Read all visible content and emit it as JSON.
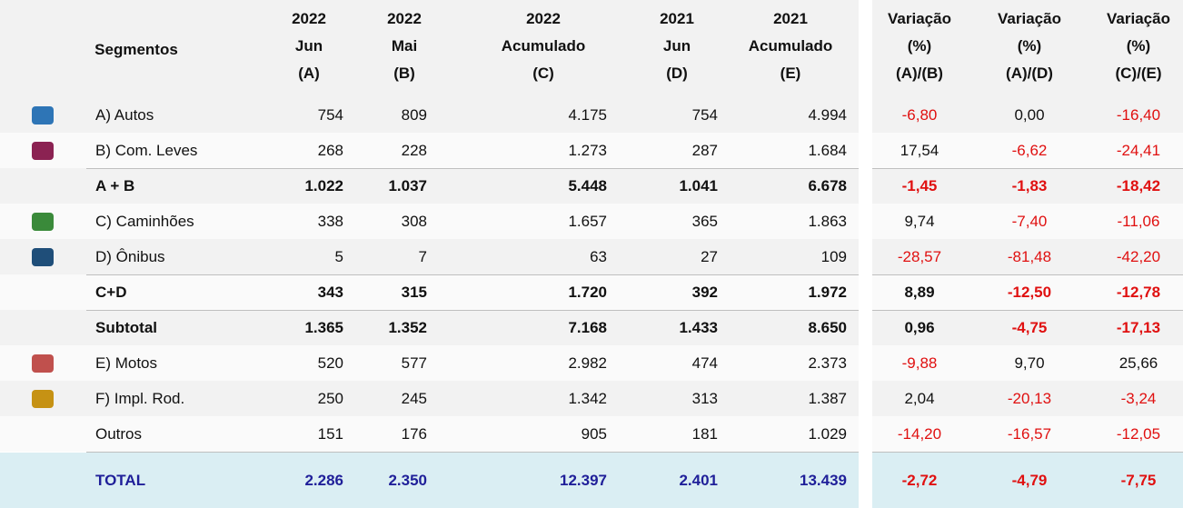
{
  "header": {
    "segment": "Segmentos",
    "columns": [
      [
        "2022",
        "Jun",
        "(A)"
      ],
      [
        "2022",
        "Mai",
        "(B)"
      ],
      [
        "2022",
        "Acumulado",
        "(C)"
      ],
      [
        "2021",
        "Jun",
        "(D)"
      ],
      [
        "2021",
        "Acumulado",
        "(E)"
      ]
    ],
    "variations": [
      [
        "Variação",
        "(%)",
        "(A)/(B)"
      ],
      [
        "Variação",
        "(%)",
        "(A)/(D)"
      ],
      [
        "Variação",
        "(%)",
        "(C)/(E)"
      ]
    ]
  },
  "rows": [
    {
      "label": "A) Autos",
      "values": [
        "754",
        "809",
        "4.175",
        "754",
        "4.994"
      ],
      "variations": [
        "-6,80",
        "0,00",
        "-16,40"
      ]
    },
    {
      "label": "B) Com. Leves",
      "values": [
        "268",
        "228",
        "1.273",
        "287",
        "1.684"
      ],
      "variations": [
        "17,54",
        "-6,62",
        "-24,41"
      ]
    },
    {
      "label": "A + B",
      "values": [
        "1.022",
        "1.037",
        "5.448",
        "1.041",
        "6.678"
      ],
      "variations": [
        "-1,45",
        "-1,83",
        "-18,42"
      ],
      "bold": true
    },
    {
      "label": "C) Caminhões",
      "values": [
        "338",
        "308",
        "1.657",
        "365",
        "1.863"
      ],
      "variations": [
        "9,74",
        "-7,40",
        "-11,06"
      ]
    },
    {
      "label": "D) Ônibus",
      "values": [
        "5",
        "7",
        "63",
        "27",
        "109"
      ],
      "variations": [
        "-28,57",
        "-81,48",
        "-42,20"
      ]
    },
    {
      "label": "C+D",
      "values": [
        "343",
        "315",
        "1.720",
        "392",
        "1.972"
      ],
      "variations": [
        "8,89",
        "-12,50",
        "-12,78"
      ],
      "bold": true
    },
    {
      "label": "Subtotal",
      "values": [
        "1.365",
        "1.352",
        "7.168",
        "1.433",
        "8.650"
      ],
      "variations": [
        "0,96",
        "-4,75",
        "-17,13"
      ],
      "bold": true
    },
    {
      "label": "E) Motos",
      "values": [
        "520",
        "577",
        "2.982",
        "474",
        "2.373"
      ],
      "variations": [
        "-9,88",
        "9,70",
        "25,66"
      ]
    },
    {
      "label": "F) Impl. Rod.",
      "values": [
        "250",
        "245",
        "1.342",
        "313",
        "1.387"
      ],
      "variations": [
        "2,04",
        "-20,13",
        "-3,24"
      ]
    },
    {
      "label": "Outros",
      "values": [
        "151",
        "176",
        "905",
        "181",
        "1.029"
      ],
      "variations": [
        "-14,20",
        "-16,57",
        "-12,05"
      ]
    }
  ],
  "total": {
    "label": "TOTAL",
    "values": [
      "2.286",
      "2.350",
      "12.397",
      "2.401",
      "13.439"
    ],
    "variations": [
      "-2,72",
      "-4,79",
      "-7,75"
    ]
  }
}
